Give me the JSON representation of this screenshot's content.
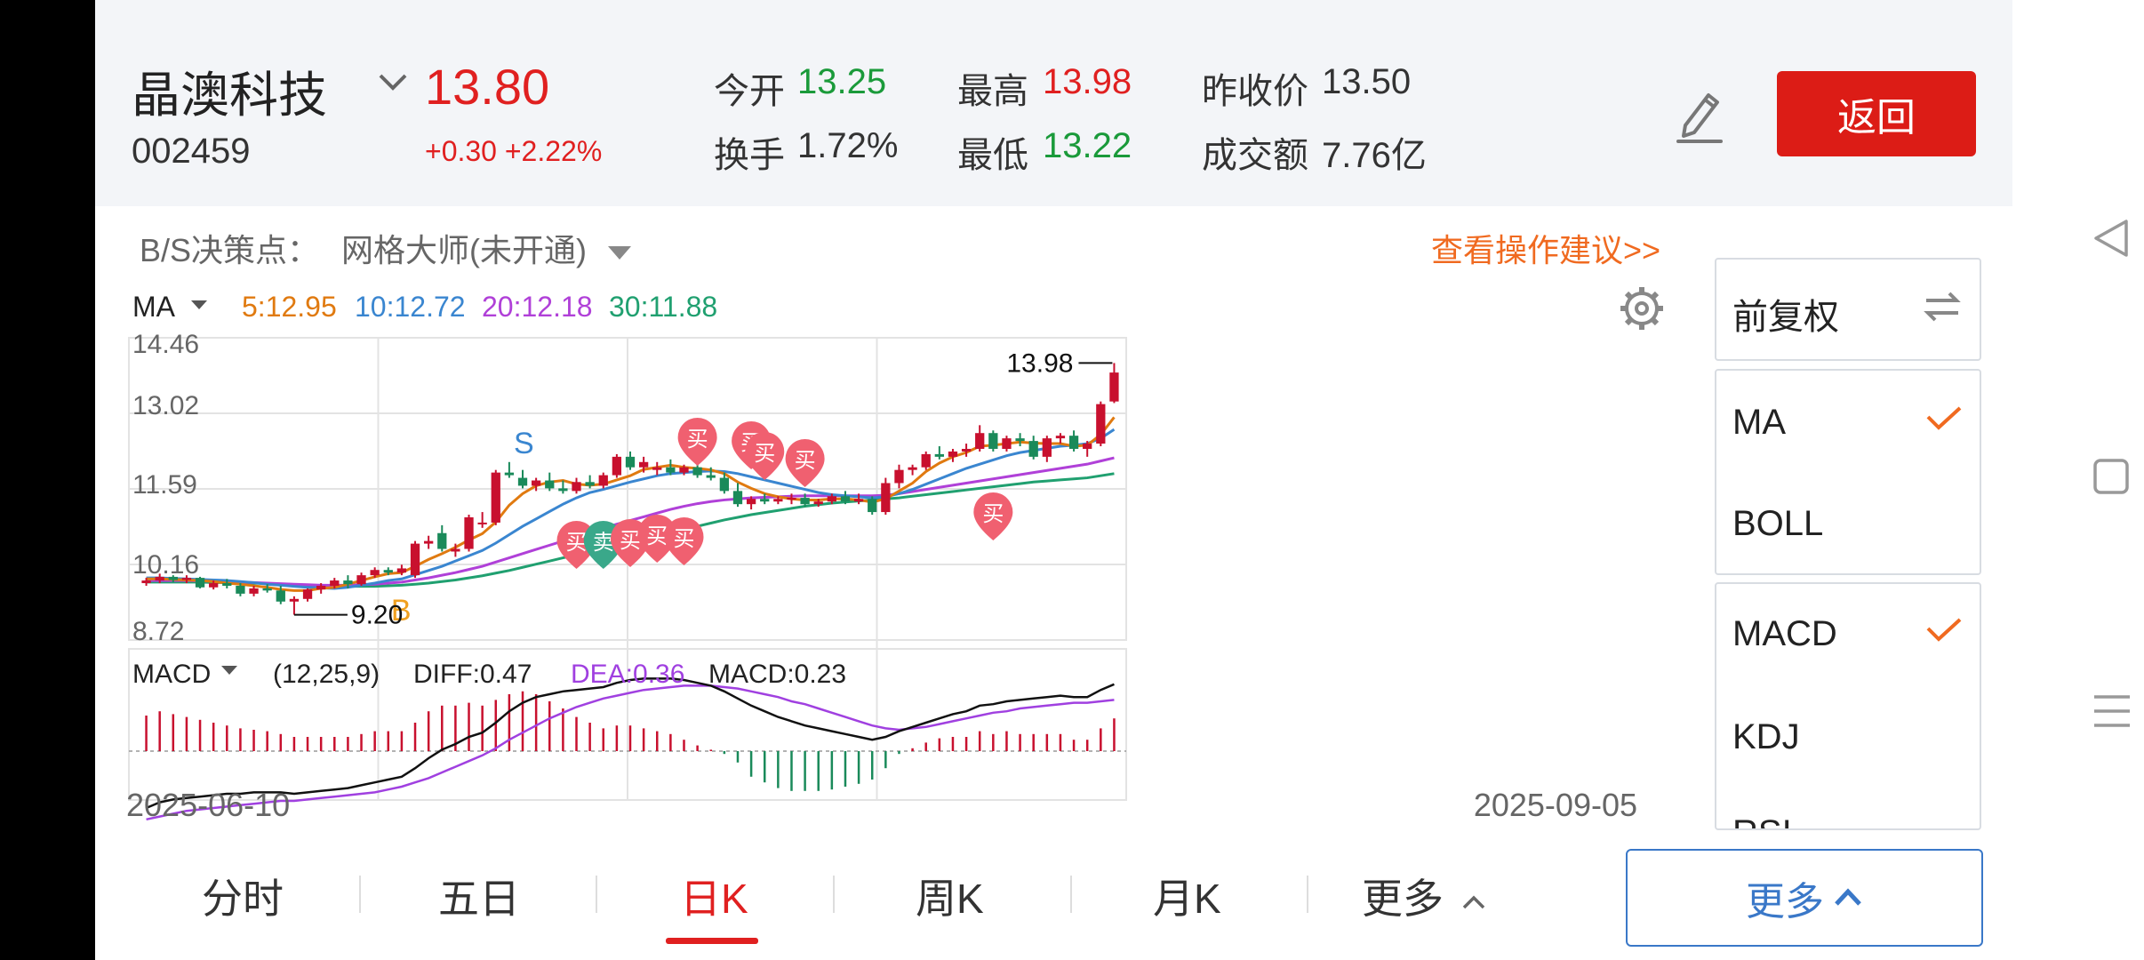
{
  "stock": {
    "name": "晶澳科技",
    "code": "002459",
    "price": "13.80",
    "change": "+0.30 +2.22%"
  },
  "stats": {
    "open_label": "今开",
    "open_value": "13.25",
    "high_label": "最高",
    "high_value": "13.98",
    "prev_close_label": "昨收价",
    "prev_close_value": "13.50",
    "turnover_label": "换手",
    "turnover_value": "1.72%",
    "low_label": "最低",
    "low_value": "13.22",
    "amount_label": "成交额",
    "amount_value": "7.76亿"
  },
  "actions": {
    "back_label": "返回",
    "edit_icon": "pencil-icon"
  },
  "decision": {
    "label": "B/S决策点：",
    "strategy": "网格大师(未开通)",
    "advice_link": "查看操作建议>>"
  },
  "ma_legend": {
    "title": "MA",
    "ma5": "5:12.95",
    "ma10": "10:12.72",
    "ma20": "20:12.18",
    "ma30": "30:11.88",
    "colors": {
      "ma5": "#e07a10",
      "ma10": "#3a86d0",
      "ma20": "#b040d8",
      "ma30": "#20a070"
    }
  },
  "price_axis": {
    "labels": [
      "14.46",
      "13.02",
      "11.59",
      "10.16",
      "8.72"
    ]
  },
  "annotations": {
    "high": "13.98",
    "low": "9.20",
    "buy_marker": "买",
    "sell_marker": "卖",
    "b_marker": "B",
    "s_marker": "S"
  },
  "macd_legend": {
    "title": "MACD",
    "params": "(12,25,9)",
    "diff": "DIFF:0.47",
    "dea": "DEA:0.36",
    "macd": "MACD:0.23",
    "colors": {
      "diff": "#111111",
      "dea": "#a040e0",
      "up": "#c8102e",
      "down": "#1a8a5a"
    }
  },
  "date_axis": {
    "start": "2025-06-10",
    "end": "2025-09-05"
  },
  "side_panel": {
    "adjust": "前复权",
    "overlays": [
      "MA",
      "BOLL"
    ],
    "indicators": [
      "MACD",
      "KDJ",
      "RSI"
    ]
  },
  "tabs": [
    "分时",
    "五日",
    "日K",
    "周K",
    "月K",
    "更多"
  ],
  "more_button": "更多",
  "chart_data": {
    "type": "candlestick",
    "x_start": "2025-06-10",
    "x_end": "2025-09-05",
    "ylim": [
      8.72,
      14.46
    ],
    "candles": [
      [
        9.8,
        9.9,
        9.75,
        9.85
      ],
      [
        9.85,
        9.98,
        9.8,
        9.92
      ],
      [
        9.92,
        9.95,
        9.82,
        9.86
      ],
      [
        9.86,
        9.95,
        9.8,
        9.9
      ],
      [
        9.9,
        9.92,
        9.7,
        9.72
      ],
      [
        9.72,
        9.85,
        9.68,
        9.8
      ],
      [
        9.8,
        9.88,
        9.7,
        9.75
      ],
      [
        9.75,
        9.8,
        9.55,
        9.6
      ],
      [
        9.6,
        9.75,
        9.55,
        9.7
      ],
      [
        9.7,
        9.78,
        9.62,
        9.66
      ],
      [
        9.66,
        9.75,
        9.4,
        9.45
      ],
      [
        9.45,
        9.55,
        9.2,
        9.5
      ],
      [
        9.5,
        9.7,
        9.45,
        9.68
      ],
      [
        9.68,
        9.8,
        9.6,
        9.75
      ],
      [
        9.75,
        9.9,
        9.7,
        9.85
      ],
      [
        9.85,
        9.95,
        9.7,
        9.78
      ],
      [
        9.78,
        10.0,
        9.75,
        9.95
      ],
      [
        9.95,
        10.1,
        9.9,
        10.05
      ],
      [
        10.05,
        10.1,
        9.95,
        10.0
      ],
      [
        10.0,
        10.15,
        9.95,
        10.08
      ],
      [
        9.95,
        10.6,
        9.9,
        10.55
      ],
      [
        10.55,
        10.7,
        10.45,
        10.6
      ],
      [
        10.75,
        10.9,
        10.4,
        10.45
      ],
      [
        10.4,
        10.55,
        10.3,
        10.45
      ],
      [
        10.45,
        11.1,
        10.4,
        11.05
      ],
      [
        10.95,
        11.15,
        10.85,
        10.95
      ],
      [
        10.95,
        11.95,
        10.9,
        11.9
      ],
      [
        11.9,
        12.1,
        11.8,
        11.85
      ],
      [
        11.8,
        11.95,
        11.6,
        11.65
      ],
      [
        11.65,
        11.8,
        11.55,
        11.75
      ],
      [
        11.75,
        11.9,
        11.55,
        11.6
      ],
      [
        11.6,
        11.75,
        11.5,
        11.55
      ],
      [
        11.55,
        11.8,
        11.5,
        11.72
      ],
      [
        11.72,
        11.85,
        11.6,
        11.65
      ],
      [
        11.65,
        11.9,
        11.6,
        11.85
      ],
      [
        11.85,
        12.25,
        11.8,
        12.2
      ],
      [
        12.2,
        12.3,
        11.95,
        12.0
      ],
      [
        12.0,
        12.2,
        11.9,
        12.1
      ],
      [
        11.95,
        12.1,
        11.85,
        12.0
      ],
      [
        12.0,
        12.15,
        11.85,
        11.9
      ],
      [
        11.9,
        12.05,
        11.85,
        12.0
      ],
      [
        12.0,
        12.1,
        11.8,
        11.85
      ],
      [
        11.85,
        12.0,
        11.75,
        11.8
      ],
      [
        11.8,
        11.9,
        11.5,
        11.55
      ],
      [
        11.55,
        11.7,
        11.25,
        11.3
      ],
      [
        11.3,
        11.45,
        11.2,
        11.4
      ],
      [
        11.4,
        11.5,
        11.3,
        11.35
      ],
      [
        11.35,
        11.45,
        11.3,
        11.4
      ],
      [
        11.4,
        11.5,
        11.3,
        11.42
      ],
      [
        11.42,
        11.5,
        11.25,
        11.3
      ],
      [
        11.3,
        11.4,
        11.25,
        11.35
      ],
      [
        11.35,
        11.5,
        11.3,
        11.45
      ],
      [
        11.45,
        11.55,
        11.3,
        11.35
      ],
      [
        11.35,
        11.5,
        11.3,
        11.4
      ],
      [
        11.4,
        11.45,
        11.1,
        11.15
      ],
      [
        11.15,
        11.8,
        11.1,
        11.7
      ],
      [
        11.7,
        12.05,
        11.6,
        11.95
      ],
      [
        11.95,
        12.05,
        11.85,
        12.0
      ],
      [
        12.0,
        12.3,
        11.95,
        12.25
      ],
      [
        12.25,
        12.4,
        12.15,
        12.2
      ],
      [
        12.2,
        12.35,
        12.1,
        12.3
      ],
      [
        12.3,
        12.45,
        12.2,
        12.35
      ],
      [
        12.35,
        12.8,
        12.3,
        12.65
      ],
      [
        12.65,
        12.7,
        12.3,
        12.35
      ],
      [
        12.35,
        12.6,
        12.3,
        12.55
      ],
      [
        12.55,
        12.65,
        12.4,
        12.5
      ],
      [
        12.5,
        12.6,
        12.15,
        12.2
      ],
      [
        12.2,
        12.6,
        12.1,
        12.55
      ],
      [
        12.55,
        12.65,
        12.45,
        12.6
      ],
      [
        12.6,
        12.7,
        12.3,
        12.35
      ],
      [
        12.35,
        12.5,
        12.2,
        12.45
      ],
      [
        12.45,
        13.25,
        12.4,
        13.2
      ],
      [
        13.25,
        13.98,
        13.22,
        13.8
      ]
    ],
    "ma5": [
      9.88,
      9.88,
      9.87,
      9.86,
      9.85,
      9.83,
      9.8,
      9.78,
      9.75,
      9.72,
      9.68,
      9.66,
      9.66,
      9.7,
      9.72,
      9.78,
      9.85,
      9.92,
      9.98,
      10.0,
      10.12,
      10.25,
      10.36,
      10.48,
      10.62,
      10.74,
      10.96,
      11.28,
      11.5,
      11.65,
      11.72,
      11.75,
      11.68,
      11.66,
      11.68,
      11.76,
      11.84,
      11.96,
      12.0,
      12.04,
      12.0,
      11.98,
      11.95,
      11.88,
      11.72,
      11.6,
      11.5,
      11.44,
      11.4,
      11.38,
      11.38,
      11.4,
      11.4,
      11.38,
      11.34,
      11.4,
      11.55,
      11.7,
      11.92,
      12.08,
      12.2,
      12.28,
      12.4,
      12.42,
      12.45,
      12.48,
      12.46,
      12.45,
      12.45,
      12.4,
      12.42,
      12.62,
      12.95
    ],
    "ma10": [
      9.9,
      9.9,
      9.89,
      9.88,
      9.87,
      9.86,
      9.85,
      9.83,
      9.81,
      9.78,
      9.76,
      9.74,
      9.72,
      9.71,
      9.7,
      9.72,
      9.76,
      9.8,
      9.85,
      9.88,
      9.96,
      10.04,
      10.12,
      10.22,
      10.32,
      10.42,
      10.56,
      10.72,
      10.88,
      11.02,
      11.16,
      11.3,
      11.42,
      11.52,
      11.58,
      11.65,
      11.72,
      11.78,
      11.84,
      11.88,
      11.9,
      11.92,
      11.93,
      11.92,
      11.88,
      11.82,
      11.76,
      11.7,
      11.64,
      11.58,
      11.52,
      11.48,
      11.46,
      11.44,
      11.42,
      11.44,
      11.5,
      11.58,
      11.68,
      11.78,
      11.88,
      11.98,
      12.06,
      12.14,
      12.22,
      12.28,
      12.32,
      12.36,
      12.4,
      12.42,
      12.45,
      12.55,
      12.72
    ],
    "ma20": [
      9.85,
      9.85,
      9.85,
      9.85,
      9.84,
      9.84,
      9.83,
      9.82,
      9.81,
      9.8,
      9.79,
      9.78,
      9.77,
      9.76,
      9.76,
      9.76,
      9.77,
      9.78,
      9.8,
      9.82,
      9.86,
      9.9,
      9.95,
      10.0,
      10.06,
      10.12,
      10.2,
      10.28,
      10.36,
      10.44,
      10.52,
      10.6,
      10.68,
      10.76,
      10.84,
      10.92,
      10.99,
      11.06,
      11.13,
      11.2,
      11.26,
      11.31,
      11.35,
      11.38,
      11.4,
      11.42,
      11.43,
      11.44,
      11.45,
      11.46,
      11.46,
      11.46,
      11.46,
      11.46,
      11.46,
      11.47,
      11.5,
      11.54,
      11.58,
      11.62,
      11.66,
      11.7,
      11.74,
      11.78,
      11.82,
      11.86,
      11.9,
      11.94,
      11.98,
      12.02,
      12.06,
      12.12,
      12.18
    ],
    "ma30": [
      9.82,
      9.82,
      9.82,
      9.82,
      9.82,
      9.81,
      9.81,
      9.8,
      9.8,
      9.79,
      9.78,
      9.77,
      9.76,
      9.75,
      9.74,
      9.74,
      9.74,
      9.74,
      9.75,
      9.76,
      9.78,
      9.8,
      9.83,
      9.86,
      9.9,
      9.94,
      9.99,
      10.04,
      10.1,
      10.16,
      10.22,
      10.28,
      10.34,
      10.4,
      10.46,
      10.52,
      10.58,
      10.64,
      10.7,
      10.76,
      10.82,
      10.88,
      10.94,
      11.0,
      11.05,
      11.1,
      11.14,
      11.18,
      11.22,
      11.26,
      11.29,
      11.32,
      11.34,
      11.36,
      11.38,
      11.4,
      11.42,
      11.45,
      11.48,
      11.51,
      11.54,
      11.57,
      11.6,
      11.63,
      11.66,
      11.69,
      11.72,
      11.74,
      11.76,
      11.78,
      11.8,
      11.84,
      11.88
    ],
    "diff": [
      -0.4,
      -0.36,
      -0.34,
      -0.33,
      -0.32,
      -0.31,
      -0.3,
      -0.3,
      -0.29,
      -0.29,
      -0.29,
      -0.3,
      -0.29,
      -0.28,
      -0.27,
      -0.26,
      -0.24,
      -0.22,
      -0.2,
      -0.18,
      -0.12,
      -0.05,
      0.01,
      0.05,
      0.1,
      0.13,
      0.2,
      0.28,
      0.34,
      0.38,
      0.4,
      0.42,
      0.43,
      0.44,
      0.45,
      0.48,
      0.5,
      0.51,
      0.51,
      0.51,
      0.5,
      0.48,
      0.46,
      0.42,
      0.37,
      0.32,
      0.28,
      0.24,
      0.21,
      0.18,
      0.16,
      0.14,
      0.12,
      0.1,
      0.08,
      0.1,
      0.14,
      0.17,
      0.2,
      0.23,
      0.26,
      0.28,
      0.32,
      0.33,
      0.35,
      0.36,
      0.37,
      0.38,
      0.39,
      0.38,
      0.38,
      0.43,
      0.47
    ],
    "dea": [
      -0.48,
      -0.46,
      -0.44,
      -0.42,
      -0.41,
      -0.4,
      -0.39,
      -0.38,
      -0.37,
      -0.36,
      -0.35,
      -0.35,
      -0.34,
      -0.33,
      -0.32,
      -0.31,
      -0.3,
      -0.29,
      -0.27,
      -0.25,
      -0.22,
      -0.19,
      -0.15,
      -0.11,
      -0.07,
      -0.03,
      0.02,
      0.08,
      0.13,
      0.18,
      0.23,
      0.27,
      0.31,
      0.34,
      0.37,
      0.39,
      0.41,
      0.43,
      0.44,
      0.45,
      0.46,
      0.46,
      0.46,
      0.45,
      0.44,
      0.42,
      0.4,
      0.38,
      0.35,
      0.33,
      0.3,
      0.27,
      0.24,
      0.21,
      0.18,
      0.16,
      0.15,
      0.16,
      0.17,
      0.19,
      0.21,
      0.23,
      0.25,
      0.27,
      0.28,
      0.3,
      0.31,
      0.32,
      0.33,
      0.34,
      0.34,
      0.35,
      0.36
    ],
    "macd": [
      0.25,
      0.28,
      0.26,
      0.24,
      0.22,
      0.2,
      0.18,
      0.16,
      0.15,
      0.14,
      0.12,
      0.1,
      0.1,
      0.1,
      0.1,
      0.1,
      0.12,
      0.14,
      0.14,
      0.14,
      0.2,
      0.28,
      0.32,
      0.32,
      0.34,
      0.32,
      0.36,
      0.4,
      0.42,
      0.4,
      0.35,
      0.3,
      0.24,
      0.2,
      0.16,
      0.18,
      0.18,
      0.16,
      0.14,
      0.12,
      0.08,
      0.04,
      0.01,
      -0.02,
      -0.08,
      -0.18,
      -0.22,
      -0.26,
      -0.28,
      -0.28,
      -0.28,
      -0.27,
      -0.25,
      -0.23,
      -0.2,
      -0.12,
      -0.02,
      0.02,
      0.06,
      0.09,
      0.1,
      0.1,
      0.14,
      0.12,
      0.14,
      0.12,
      0.12,
      0.12,
      0.12,
      0.08,
      0.08,
      0.16,
      0.23
    ]
  }
}
